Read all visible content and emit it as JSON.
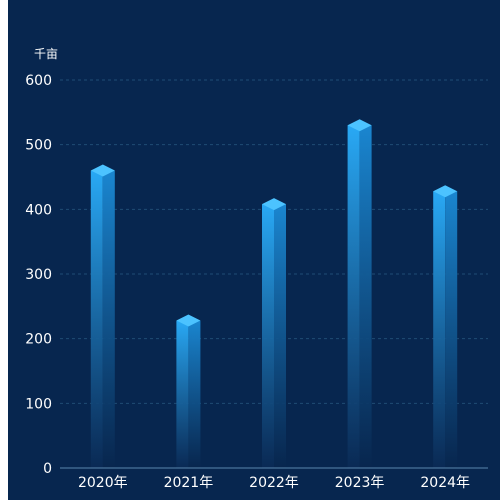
{
  "chart_data": {
    "type": "bar",
    "unit_label": "千亩",
    "categories": [
      "2020年",
      "2021年",
      "2022年",
      "2023年",
      "2024年"
    ],
    "values": [
      460,
      228,
      408,
      530,
      428
    ],
    "ylim": [
      0,
      600
    ],
    "yticks": [
      0,
      100,
      200,
      300,
      400,
      500,
      600
    ],
    "grid": true,
    "legend": "none"
  },
  "colors": {
    "background": "#07264f",
    "bar_top": "#29a9f5",
    "bar_bottom": "#0a2a55",
    "cap": "#4cc3ff",
    "grid": "#1f4c74",
    "axis": "#5a87ad",
    "text": "#ffffff"
  }
}
